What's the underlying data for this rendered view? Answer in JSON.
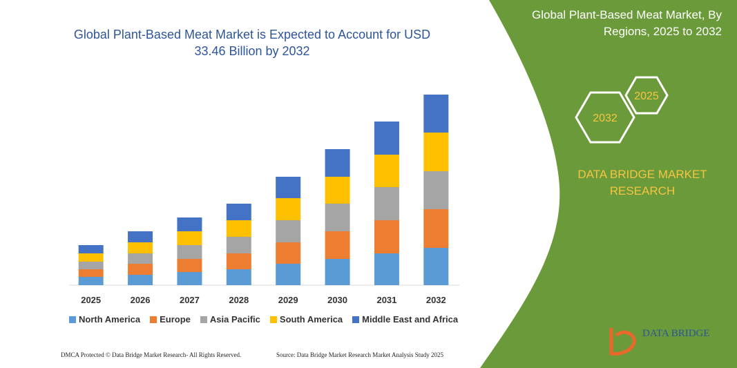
{
  "chart_data": {
    "type": "stacked-bar",
    "title": "Global Plant-Based Meat Market is Expected to Account for USD 33.46 Billion by 2032",
    "categories": [
      "2025",
      "2026",
      "2027",
      "2028",
      "2029",
      "2030",
      "2031",
      "2032"
    ],
    "series": [
      {
        "name": "North America",
        "color": "#5b9bd5",
        "values": [
          12,
          15,
          19,
          23,
          31,
          38,
          46,
          54
        ]
      },
      {
        "name": "Europe",
        "color": "#ed7d31",
        "values": [
          11,
          16,
          19,
          23,
          31,
          40,
          48,
          56
        ]
      },
      {
        "name": "Asia Pacific",
        "color": "#a5a5a5",
        "values": [
          11,
          15,
          20,
          24,
          32,
          40,
          48,
          55
        ]
      },
      {
        "name": "South America",
        "color": "#ffc000",
        "values": [
          12,
          16,
          20,
          24,
          32,
          39,
          47,
          56
        ]
      },
      {
        "name": "Middle East and Africa",
        "color": "#4472c4",
        "values": [
          12,
          16,
          20,
          24,
          31,
          40,
          48,
          55
        ]
      }
    ]
  },
  "panel": {
    "title": "Global Plant-Based Meat Market, By Regions, 2025 to 2032",
    "hex_top": "2025",
    "hex_bottom": "2032",
    "brand": "DATA BRIDGE MARKET RESEARCH",
    "logo": "DATA BRIDGE"
  },
  "footer": {
    "left": "DMCA Protected © Data Bridge Market Research- All Rights Reserved.",
    "right": "Source: Data Bridge Market Research Market Analysis Study 2025"
  }
}
